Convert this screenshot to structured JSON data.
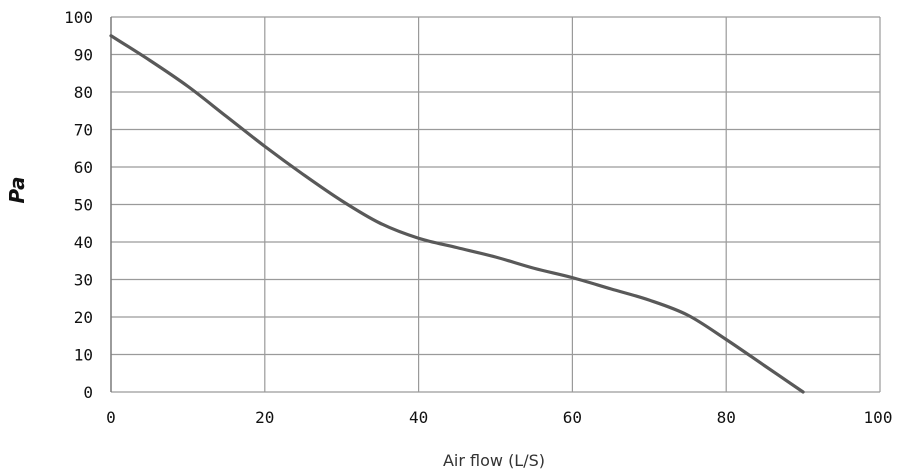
{
  "chart_data": {
    "type": "line",
    "title": "",
    "xlabel": "Air flow (L/S)",
    "ylabel": "Pa",
    "xlim": [
      0,
      100
    ],
    "ylim": [
      0,
      100
    ],
    "x_ticks": [
      0,
      20,
      40,
      60,
      80,
      100
    ],
    "x_tick_labels": [
      "0",
      "20",
      "40",
      "60",
      "80",
      "100"
    ],
    "y_ticks": [
      0,
      10,
      20,
      30,
      40,
      50,
      60,
      70,
      80,
      90,
      100
    ],
    "y_tick_labels": [
      "0",
      "10",
      "20",
      "30",
      "40",
      "50",
      "60",
      "70",
      "80",
      "90",
      "100"
    ],
    "grid": true,
    "legend": "none",
    "series": [
      {
        "color": "#595959",
        "x": [
          0,
          5,
          10,
          15,
          20,
          25,
          30,
          35,
          40,
          45,
          50,
          55,
          60,
          65,
          70,
          75,
          80,
          85,
          90
        ],
        "y": [
          95,
          88.5,
          81.5,
          73.5,
          65.5,
          58,
          51,
          45,
          41,
          38.5,
          36,
          33,
          30.5,
          27.5,
          24.5,
          20.5,
          14,
          7,
          0
        ]
      }
    ]
  },
  "colors": {
    "grid": "#9a9a9a",
    "background": "#ffffff",
    "line": "#595959"
  }
}
